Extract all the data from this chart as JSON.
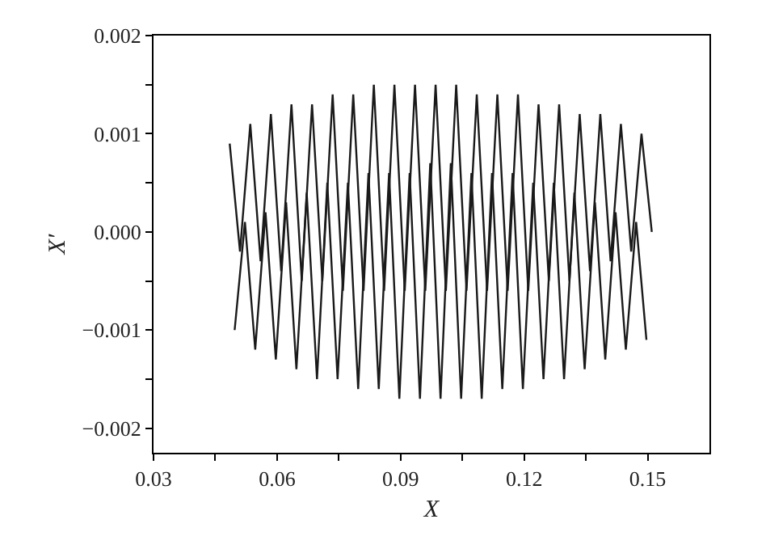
{
  "chart_data": {
    "type": "line",
    "xlabel": "X",
    "ylabel": "X′",
    "xlim": [
      0.03,
      0.165
    ],
    "ylim": [
      -0.00225,
      0.002
    ],
    "xticks": [
      0.03,
      {
        "value": 0.045,
        "label": null
      },
      0.06,
      {
        "value": 0.075,
        "label": null
      },
      0.09,
      {
        "value": 0.105,
        "label": null
      },
      0.12,
      {
        "value": 0.135,
        "label": null
      },
      0.15
    ],
    "yticks": [
      {
        "value": -0.002,
        "label": "−0.002"
      },
      {
        "value": -0.0015,
        "label": null
      },
      {
        "value": -0.001,
        "label": "−0.001"
      },
      {
        "value": -0.0005,
        "label": null
      },
      {
        "value": 0,
        "label": "0.000"
      },
      {
        "value": 0.0005,
        "label": null
      },
      {
        "value": 0.001,
        "label": "0.001"
      },
      {
        "value": 0.0015,
        "label": null
      },
      {
        "value": 0.002,
        "label": "0.002"
      }
    ],
    "marker": "none",
    "line_style": "solid",
    "series": [
      {
        "color": "#1a1a1a",
        "x": [
          0.0485,
          0.051,
          0.0535,
          0.056,
          0.0585,
          0.061,
          0.0635,
          0.066,
          0.0685,
          0.071,
          0.0735,
          0.076,
          0.0785,
          0.081,
          0.0835,
          0.086,
          0.0885,
          0.091,
          0.0935,
          0.096,
          0.0985,
          0.101,
          0.1035,
          0.106,
          0.1085,
          0.111,
          0.1135,
          0.116,
          0.1185,
          0.121,
          0.1235,
          0.126,
          0.1285,
          0.131,
          0.1335,
          0.136,
          0.1385,
          0.141,
          0.1435,
          0.146,
          0.1485,
          0.151
        ],
        "values": [
          0.0009,
          -0.0002,
          0.0011,
          -0.0003,
          0.0012,
          -0.0004,
          0.0013,
          -0.0005,
          0.0013,
          -0.0005,
          0.0014,
          -0.0006,
          0.0014,
          -0.0006,
          0.0015,
          -0.0006,
          0.0015,
          -0.0006,
          0.0015,
          -0.0006,
          0.0015,
          -0.0006,
          0.0015,
          -0.0006,
          0.0014,
          -0.0006,
          0.0014,
          -0.0006,
          0.0014,
          -0.0006,
          0.0013,
          -0.0005,
          0.0013,
          -0.0005,
          0.0012,
          -0.0004,
          0.0012,
          -0.0003,
          0.0011,
          -0.0002,
          0.001,
          0.0
        ]
      },
      {
        "color": "#1a1a1a",
        "x": [
          0.0497,
          0.0522,
          0.0547,
          0.0572,
          0.0597,
          0.0622,
          0.0647,
          0.0672,
          0.0697,
          0.0722,
          0.0747,
          0.0772,
          0.0797,
          0.0822,
          0.0847,
          0.0872,
          0.0897,
          0.0922,
          0.0947,
          0.0972,
          0.0997,
          0.1022,
          0.1047,
          0.1072,
          0.1097,
          0.1122,
          0.1147,
          0.1172,
          0.1197,
          0.1222,
          0.1247,
          0.1272,
          0.1297,
          0.1322,
          0.1347,
          0.1372,
          0.1397,
          0.1422,
          0.1447,
          0.1472,
          0.1497
        ],
        "values": [
          -0.001,
          0.0001,
          -0.0012,
          0.0002,
          -0.0013,
          0.0003,
          -0.0014,
          0.0004,
          -0.0015,
          0.0005,
          -0.0015,
          0.0005,
          -0.0016,
          0.0006,
          -0.0016,
          0.0006,
          -0.0017,
          0.0006,
          -0.0017,
          0.0007,
          -0.0017,
          0.0007,
          -0.0017,
          0.0006,
          -0.0017,
          0.0006,
          -0.0016,
          0.0006,
          -0.0016,
          0.0005,
          -0.0015,
          0.0005,
          -0.0015,
          0.0004,
          -0.0014,
          0.0003,
          -0.0013,
          0.0002,
          -0.0012,
          0.0001,
          -0.0011
        ]
      }
    ]
  }
}
